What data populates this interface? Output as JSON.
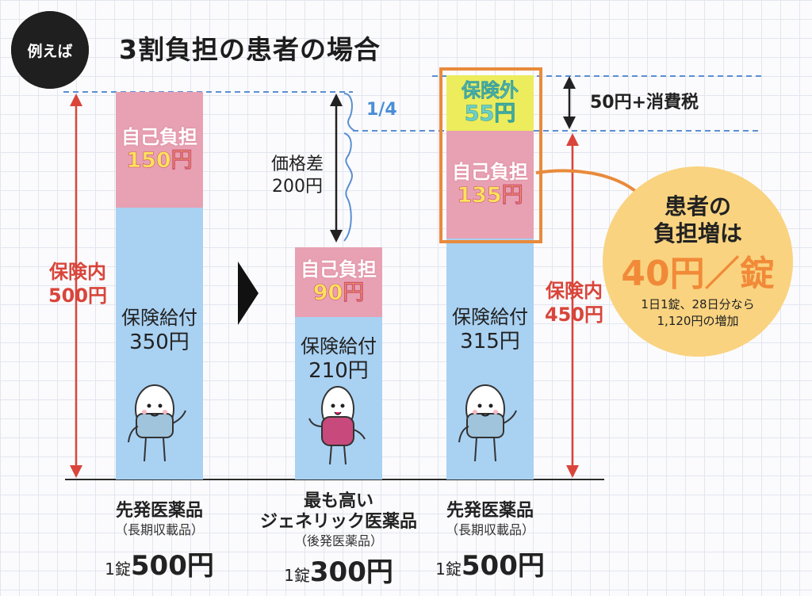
{
  "header": {
    "badge": "例えば",
    "title": "3割負担の患者の場合"
  },
  "left_axis": {
    "label": "保険内",
    "amount": "500円"
  },
  "right_axis": {
    "label": "保険内",
    "amount": "450円"
  },
  "price_diff": {
    "label": "価格差",
    "amount": "200円",
    "fraction": "1/4"
  },
  "out_of_insurance_note": "50円+消費税",
  "bars": [
    {
      "copay_label": "自己負担",
      "copay_amount": "150円",
      "benefit_label": "保険給付",
      "benefit_amount": "350円",
      "drug_name": "先発医薬品",
      "drug_name2": "",
      "drug_sub": "（長期収載品）",
      "price_prefix": "1錠",
      "price": "500円"
    },
    {
      "copay_label": "自己負担",
      "copay_amount": "90円",
      "benefit_label": "保険給付",
      "benefit_amount": "210円",
      "drug_name": "最も高い",
      "drug_name2": "ジェネリック医薬品",
      "drug_sub": "（後発医薬品）",
      "price_prefix": "1錠",
      "price": "300円"
    },
    {
      "outside_label": "保険外",
      "outside_amount": "55円",
      "copay_label": "自己負担",
      "copay_amount": "135円",
      "benefit_label": "保険給付",
      "benefit_amount": "315円",
      "drug_name": "先発医薬品",
      "drug_name2": "",
      "drug_sub": "（長期収載品）",
      "price_prefix": "1錠",
      "price": "500円"
    }
  ],
  "callout": {
    "line1": "患者の",
    "line2": "負担増は",
    "big": "40円／錠",
    "note1": "1日1錠、28日分なら",
    "note2": "1,120円の増加"
  },
  "colors": {
    "benefit": "#a9d1f2",
    "copay": "#e7a1b3",
    "outside": "#ecec5c",
    "highlight_frame": "#e98a3b",
    "callout": "#f9d380",
    "red_arrow": "#d9453a",
    "dashed": "#5b8fd0"
  }
}
